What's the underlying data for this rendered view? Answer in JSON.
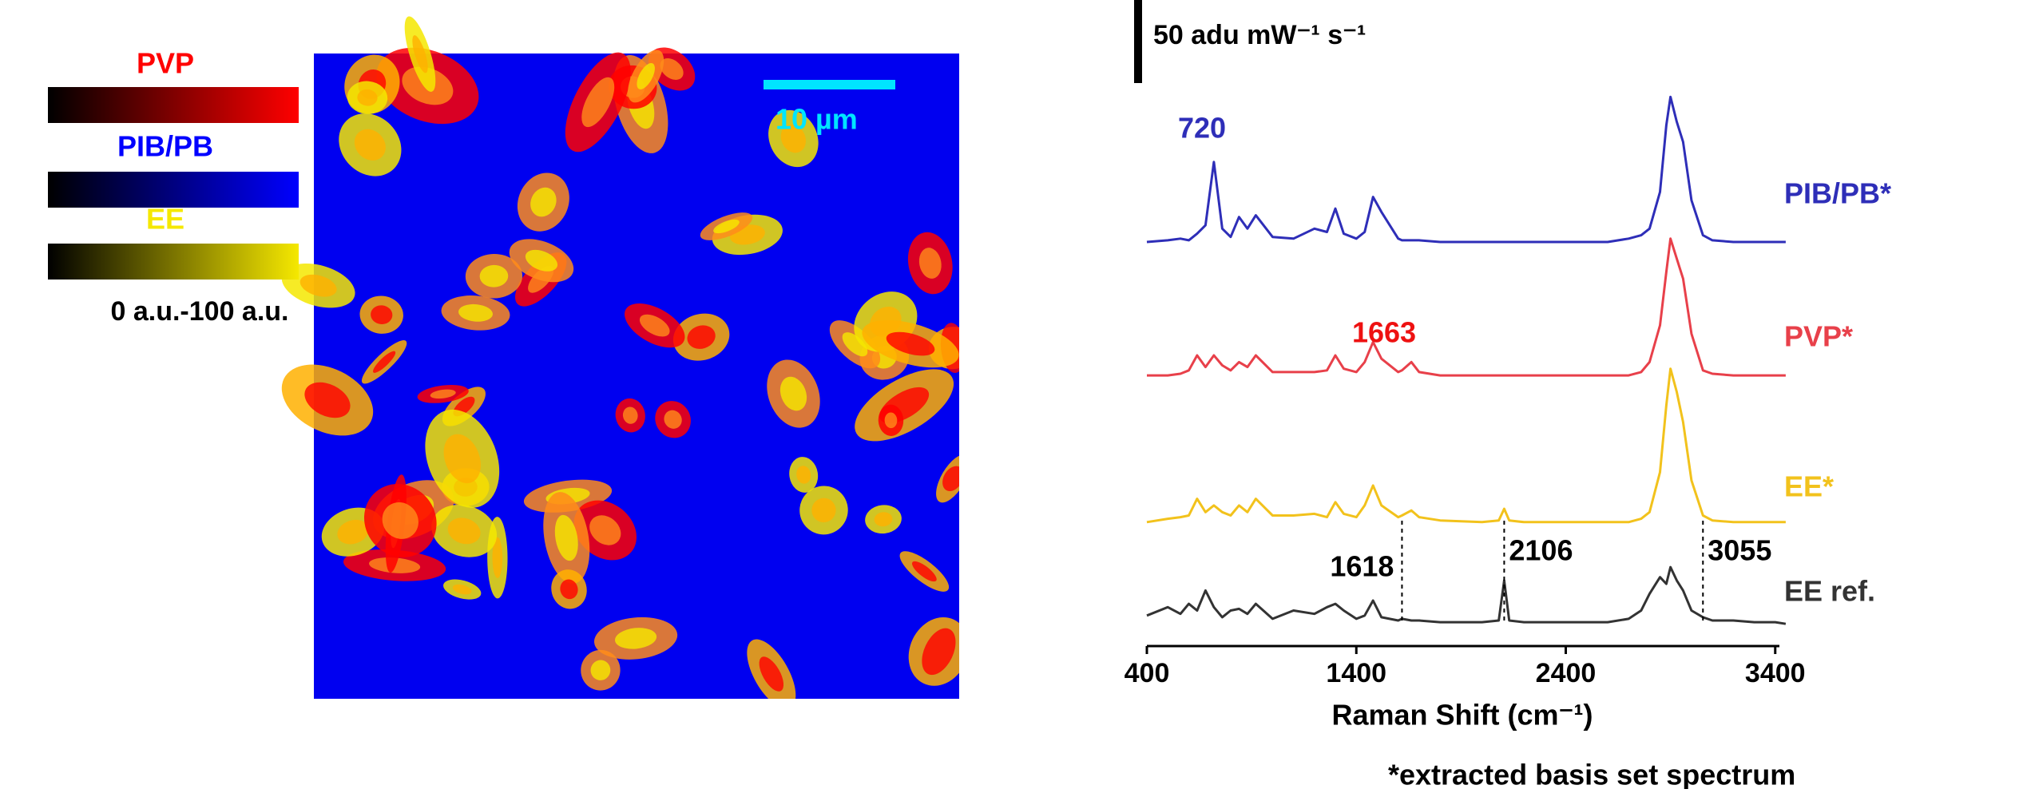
{
  "image_panel": {
    "colorbars": [
      {
        "label": "PVP",
        "color": "#ff0000"
      },
      {
        "label": "PIB/PB",
        "color": "#0000ff"
      },
      {
        "label": "EE",
        "color": "#f5e800"
      }
    ],
    "colorbar_range": "0 a.u.-100 a.u.",
    "map_color": "#0000f0",
    "scale_bar": "10 µm"
  },
  "chart_data": {
    "type": "line",
    "x_label": "Raman Shift (cm⁻¹)",
    "footnote": "*extracted basis set spectrum",
    "scale_bar": {
      "value": 50,
      "label": "50 adu mW⁻¹ s⁻¹"
    },
    "x": [
      400,
      500,
      560,
      600,
      640,
      680,
      720,
      760,
      800,
      840,
      880,
      920,
      1000,
      1100,
      1200,
      1260,
      1300,
      1340,
      1400,
      1440,
      1480,
      1520,
      1600,
      1618,
      1663,
      1700,
      1800,
      2000,
      2080,
      2106,
      2130,
      2200,
      2400,
      2600,
      2700,
      2760,
      2800,
      2850,
      2880,
      2900,
      2930,
      2960,
      3000,
      3055,
      3100,
      3200,
      3300,
      3400,
      3450
    ],
    "series": [
      {
        "name": "PIB/PB*",
        "color": "#2e2eb8",
        "values": [
          238,
          239,
          240,
          239,
          243,
          248,
          286,
          246,
          241,
          253,
          246,
          254,
          241,
          240,
          246,
          244,
          258,
          243,
          240,
          244,
          265,
          256,
          240,
          239,
          239,
          239,
          238,
          238,
          238,
          238,
          238,
          238,
          238,
          238,
          240,
          242,
          246,
          268,
          308,
          325,
          310,
          298,
          263,
          242,
          239,
          238,
          238,
          238,
          238
        ]
      },
      {
        "name": "PVP*",
        "color": "#e8404a",
        "values": [
          158,
          158,
          159,
          161,
          170,
          163,
          170,
          164,
          161,
          166,
          163,
          170,
          160,
          160,
          160,
          161,
          170,
          162,
          160,
          166,
          178,
          168,
          160,
          161,
          166,
          160,
          158,
          158,
          158,
          158,
          158,
          158,
          158,
          158,
          158,
          160,
          166,
          188,
          220,
          240,
          228,
          216,
          183,
          161,
          159,
          158,
          158,
          158,
          158
        ]
      },
      {
        "name": "EE*",
        "color": "#f2c21c",
        "values": [
          70,
          72,
          73,
          74,
          84,
          76,
          80,
          76,
          74,
          80,
          76,
          84,
          74,
          74,
          75,
          73,
          82,
          75,
          73,
          80,
          92,
          80,
          73,
          74,
          77,
          73,
          71,
          70,
          71,
          78,
          71,
          70,
          70,
          70,
          70,
          72,
          76,
          100,
          140,
          162,
          148,
          130,
          95,
          74,
          71,
          70,
          70,
          70,
          70
        ]
      },
      {
        "name": "EE ref.",
        "color": "#333333",
        "values": [
          14,
          19,
          15,
          21,
          17,
          29,
          19,
          13,
          17,
          18,
          15,
          21,
          12,
          17,
          15,
          19,
          21,
          17,
          12,
          14,
          23,
          13,
          11,
          12,
          11,
          11,
          10,
          10,
          11,
          35,
          11,
          10,
          10,
          10,
          12,
          17,
          27,
          37,
          33,
          43,
          35,
          29,
          17,
          13,
          11,
          11,
          10,
          10,
          9
        ]
      }
    ],
    "annotations": [
      {
        "text": "720",
        "x": 720,
        "color": "#2e2eb8"
      },
      {
        "text": "1663",
        "x": 1663,
        "color": "#ee1111"
      },
      {
        "text": "1618",
        "x": 1618,
        "color": "#000000",
        "dashed": true
      },
      {
        "text": "2106",
        "x": 2106,
        "color": "#000000",
        "dashed": true
      },
      {
        "text": "3055",
        "x": 3055,
        "color": "#000000",
        "dashed": true
      }
    ],
    "xlim": [
      400,
      3420
    ],
    "ylim": [
      0,
      340
    ],
    "xticks": [
      400,
      1400,
      2400,
      3400
    ]
  }
}
